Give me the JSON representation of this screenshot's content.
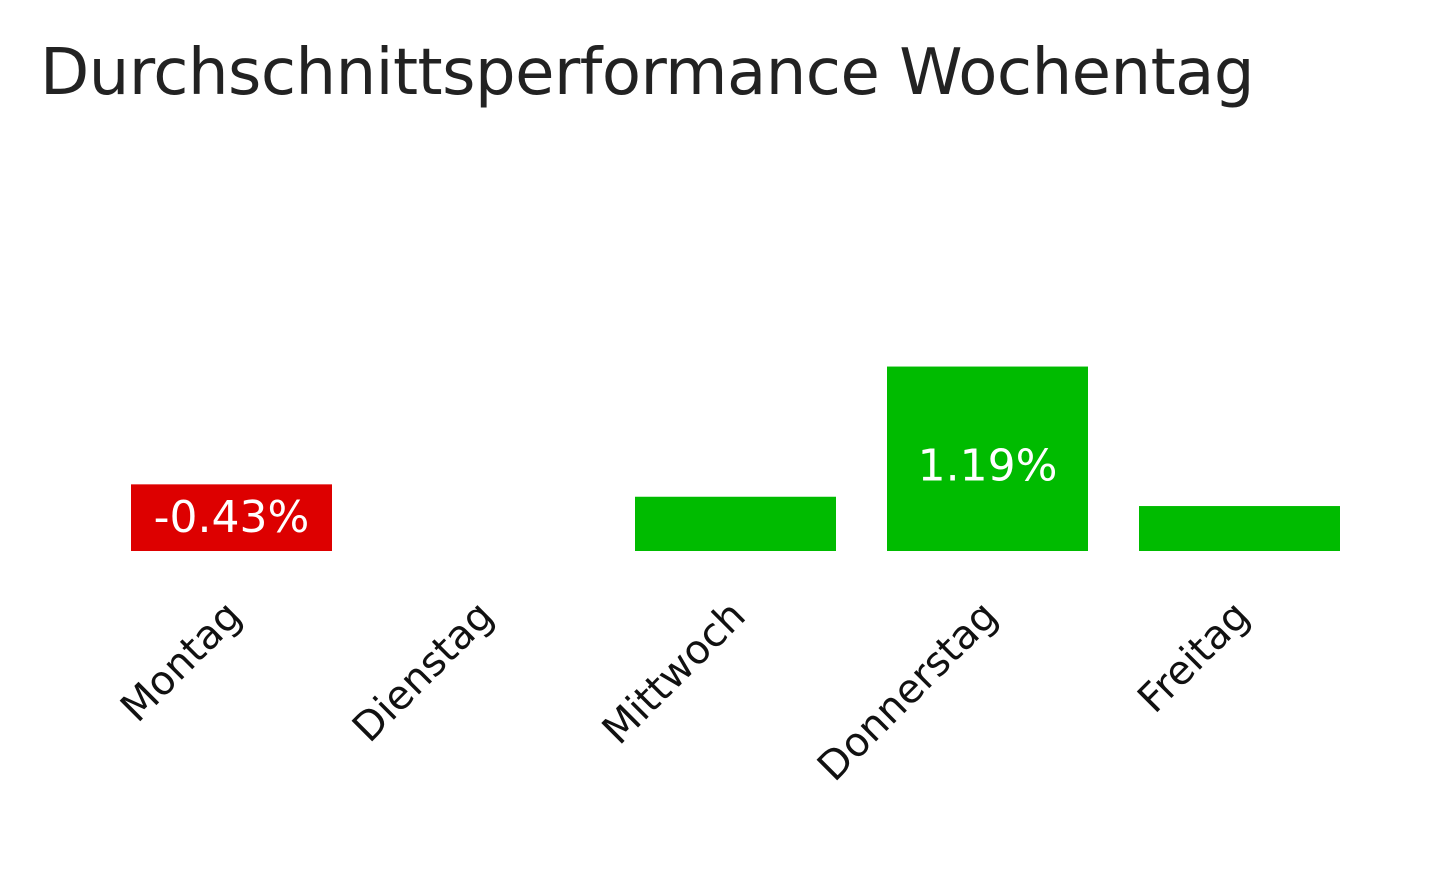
{
  "chart_data": {
    "type": "bar",
    "title": "Durchschnittsperformance Wochentag",
    "categories": [
      "Montag",
      "Dienstag",
      "Mittwoch",
      "Donnerstag",
      "Freitag"
    ],
    "values": [
      -0.43,
      0.0,
      0.35,
      1.19,
      0.29
    ],
    "data_labels": [
      "-0.43%",
      "",
      "",
      "1.19%",
      ""
    ],
    "colors": {
      "positive": "#00bb00",
      "negative": "#dd0000"
    },
    "grid": false,
    "legend": "none"
  }
}
